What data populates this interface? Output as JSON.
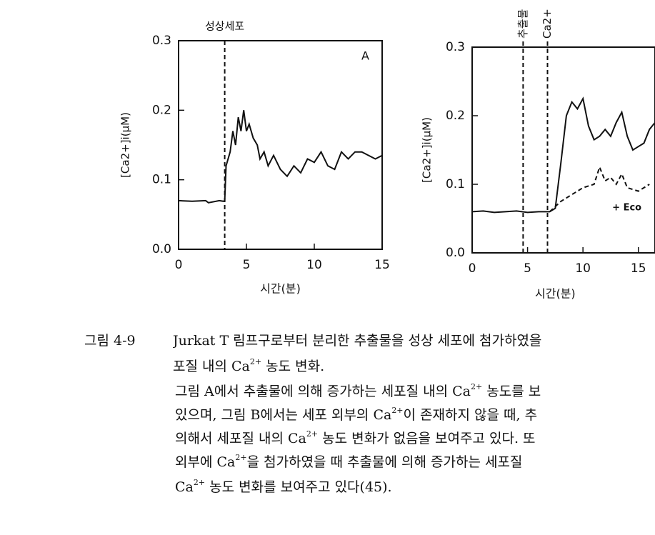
{
  "chart_data": [
    {
      "type": "line",
      "panel_label": "A",
      "xlabel": "시간(분)",
      "ylabel": "[Ca2+]i(μM)",
      "xlim": [
        0,
        15
      ],
      "ylim": [
        0,
        0.3
      ],
      "xticks": [
        0,
        5,
        10,
        15
      ],
      "yticks": [
        {
          "value": 0,
          "label": "0.0"
        },
        0.1,
        0.2,
        0.3
      ],
      "annotations": [
        {
          "text": "성상세포",
          "x": 3.4
        }
      ],
      "series": [
        {
          "color": "#111111",
          "dashed": false,
          "x": [
            0,
            1,
            2,
            2.2,
            3,
            3.3,
            3.4,
            3.5,
            3.8,
            4.0,
            4.2,
            4.4,
            4.6,
            4.8,
            5.0,
            5.2,
            5.5,
            5.8,
            6.0,
            6.3,
            6.6,
            7.0,
            7.5,
            8.0,
            8.5,
            9.0,
            9.5,
            10.0,
            10.5,
            11.0,
            11.5,
            12.0,
            12.5,
            13.0,
            13.5,
            14.0,
            14.5,
            15
          ],
          "values": [
            0.07,
            0.069,
            0.07,
            0.067,
            0.07,
            0.069,
            0.07,
            0.12,
            0.14,
            0.17,
            0.15,
            0.19,
            0.17,
            0.2,
            0.17,
            0.18,
            0.16,
            0.15,
            0.13,
            0.14,
            0.12,
            0.135,
            0.115,
            0.105,
            0.12,
            0.11,
            0.13,
            0.125,
            0.14,
            0.12,
            0.115,
            0.14,
            0.13,
            0.14,
            0.14,
            0.135,
            0.13,
            0.135
          ]
        }
      ]
    },
    {
      "type": "line",
      "xlabel": "시간(분)",
      "ylabel": "[Ca2+]i(μM)",
      "xlim": [
        0,
        16.5
      ],
      "ylim": [
        0,
        0.3
      ],
      "xticks": [
        0,
        5,
        10,
        15
      ],
      "yticks": [
        {
          "value": 0,
          "label": "0.0"
        },
        0.1,
        0.2,
        0.3
      ],
      "annotations": [
        {
          "text": "추출물",
          "x": 4.6,
          "rotate": true
        },
        {
          "text": "Ca2+",
          "x": 6.8,
          "rotate": true
        }
      ],
      "series": [
        {
          "color": "#111111",
          "dashed": false,
          "x": [
            0,
            1,
            2,
            3,
            4,
            5,
            6,
            7,
            7.5,
            8,
            8.5,
            9,
            9.5,
            10,
            10.5,
            11,
            11.5,
            12,
            12.5,
            13,
            13.5,
            14,
            14.5,
            15,
            15.5,
            16,
            16.5
          ],
          "values": [
            0.06,
            0.061,
            0.059,
            0.06,
            0.061,
            0.059,
            0.06,
            0.06,
            0.065,
            0.13,
            0.2,
            0.22,
            0.21,
            0.225,
            0.185,
            0.165,
            0.17,
            0.18,
            0.17,
            0.19,
            0.205,
            0.17,
            0.15,
            0.155,
            0.16,
            0.18,
            0.19
          ]
        },
        {
          "name": "+ Eco",
          "color": "#111111",
          "dashed": true,
          "x": [
            7,
            8,
            9,
            10,
            11,
            11.5,
            12,
            12.5,
            13,
            13.5,
            14,
            15,
            16
          ],
          "values": [
            0.06,
            0.075,
            0.085,
            0.095,
            0.1,
            0.125,
            0.105,
            0.11,
            0.1,
            0.115,
            0.095,
            0.09,
            0.1
          ]
        }
      ]
    }
  ],
  "caption": {
    "label": "그림 4-9",
    "lines": [
      [
        "Jurkat T 림프구로부터 분리한 추출물을 성상 세포에 첨가하였을"
      ],
      [
        "포질 내의 Ca",
        {
          "sup": "2+"
        },
        " 농도 변화."
      ],
      [
        "그림 A에서 추출물에 의해 증가하는 세포질 내의 Ca",
        {
          "sup": "2+"
        },
        " 농도를 보"
      ],
      [
        "있으며, 그림 B에서는 세포 외부의 Ca",
        {
          "sup": "2+"
        },
        "이 존재하지 않을 때, 추"
      ],
      [
        "의해서 세포질 내의 Ca",
        {
          "sup": "2+"
        },
        " 농도 변화가 없음을 보여주고 있다. 또"
      ],
      [
        "외부에 Ca",
        {
          "sup": "2+"
        },
        "을 첨가하였을 때 추출물에 의해 증가하는 세포질"
      ],
      [
        "Ca",
        {
          "sup": "2+"
        },
        " 농도 변화를 보여주고 있다(45)."
      ]
    ]
  }
}
